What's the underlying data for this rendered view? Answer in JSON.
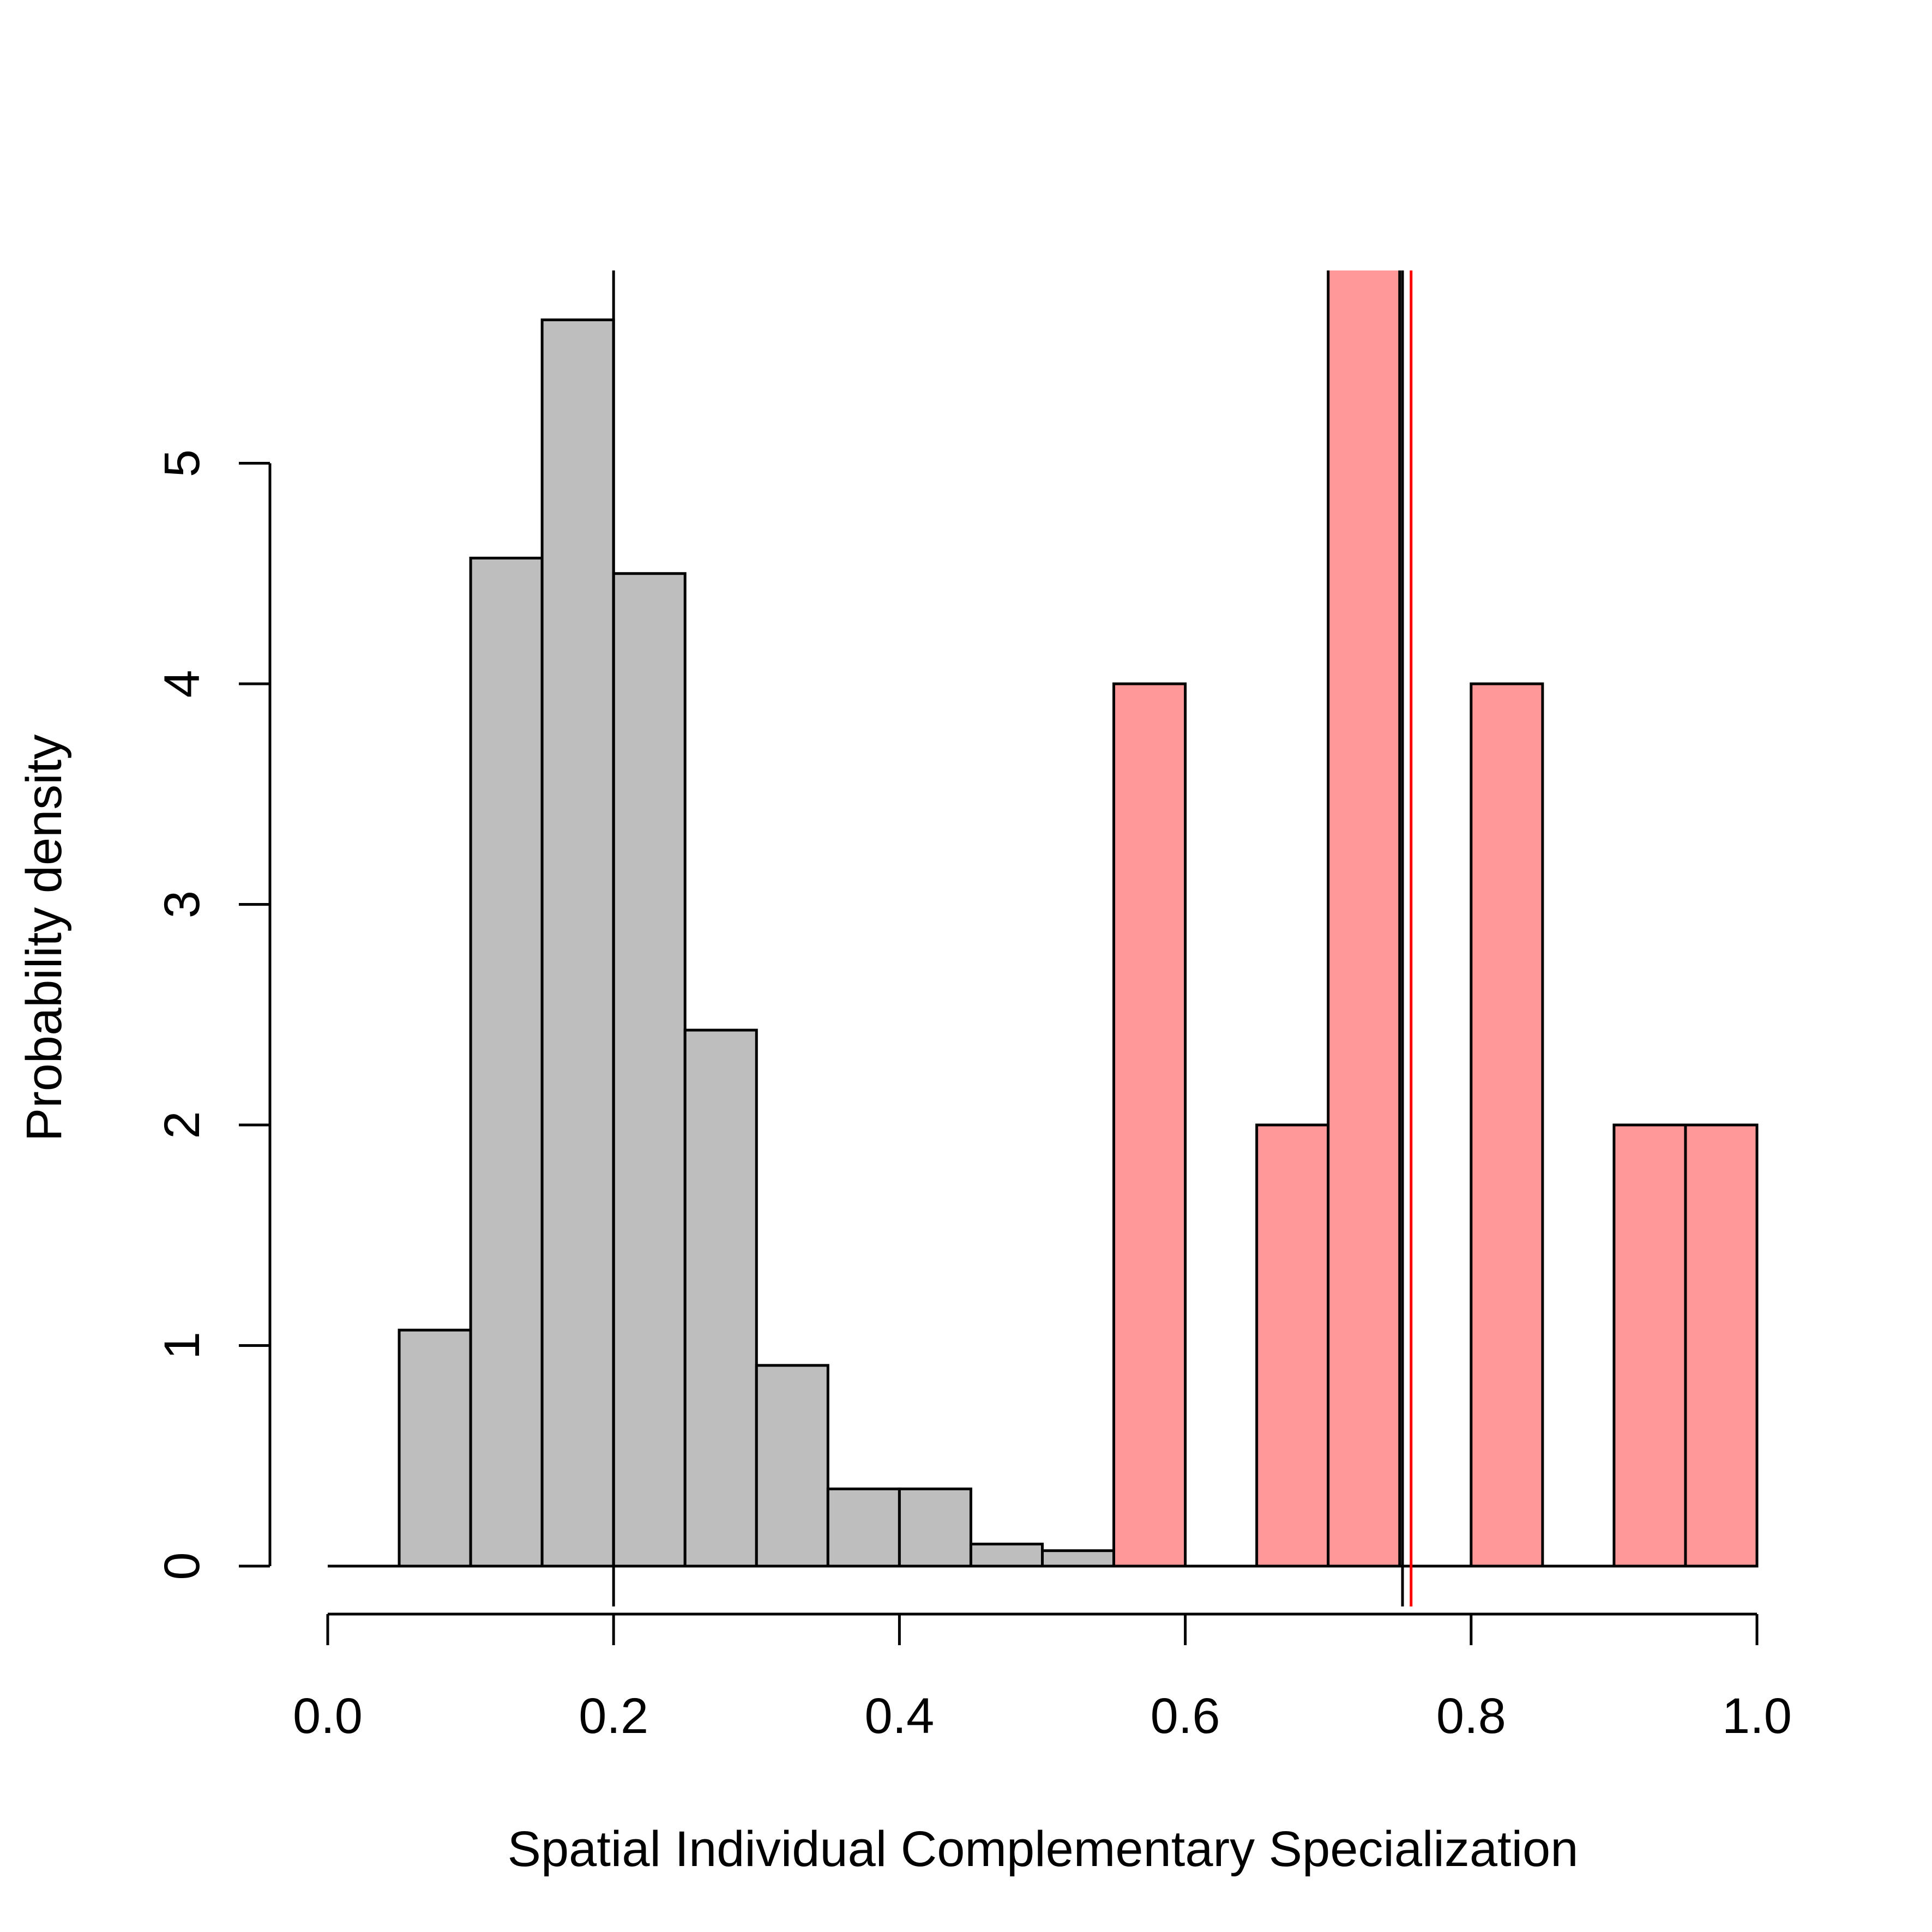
{
  "chart_data": {
    "type": "bar",
    "title": "",
    "xlabel": "Spatial Individual Complementary Specialization",
    "ylabel": "Probability density",
    "xlim": [
      0,
      1
    ],
    "ylim": [
      0,
      5.65
    ],
    "x_ticks": [
      "0.0",
      "0.2",
      "0.4",
      "0.6",
      "0.8",
      "1.0"
    ],
    "y_ticks": [
      "0",
      "1",
      "2",
      "3",
      "4",
      "5"
    ],
    "grid": false,
    "series": [
      {
        "color": "#BEBEBE",
        "bins": [
          {
            "x0": 0.05,
            "x1": 0.1,
            "value": 1.07
          },
          {
            "x0": 0.1,
            "x1": 0.15,
            "value": 4.57
          },
          {
            "x0": 0.15,
            "x1": 0.2,
            "value": 5.65
          },
          {
            "x0": 0.2,
            "x1": 0.25,
            "value": 4.5
          },
          {
            "x0": 0.25,
            "x1": 0.3,
            "value": 2.43
          },
          {
            "x0": 0.3,
            "x1": 0.35,
            "value": 0.91
          },
          {
            "x0": 0.35,
            "x1": 0.4,
            "value": 0.35
          },
          {
            "x0": 0.4,
            "x1": 0.45,
            "value": 0.35
          },
          {
            "x0": 0.45,
            "x1": 0.5,
            "value": 0.1
          },
          {
            "x0": 0.5,
            "x1": 0.55,
            "value": 0.07
          }
        ]
      },
      {
        "color": "#FF9999",
        "bins": [
          {
            "x0": 0.55,
            "x1": 0.6,
            "value": 4
          },
          {
            "x0": 0.65,
            "x1": 0.7,
            "value": 2
          },
          {
            "x0": 0.7,
            "x1": 0.75,
            "value": 6
          },
          {
            "x0": 0.8,
            "x1": 0.85,
            "value": 4
          },
          {
            "x0": 0.9,
            "x1": 0.95,
            "value": 2
          },
          {
            "x0": 0.95,
            "x1": 1.0,
            "value": 2
          }
        ]
      }
    ],
    "vlines": [
      {
        "x": 0.2,
        "color": "#000000"
      },
      {
        "x": 0.752,
        "color": "#000000"
      },
      {
        "x": 0.758,
        "color": "#FF0000"
      }
    ]
  }
}
